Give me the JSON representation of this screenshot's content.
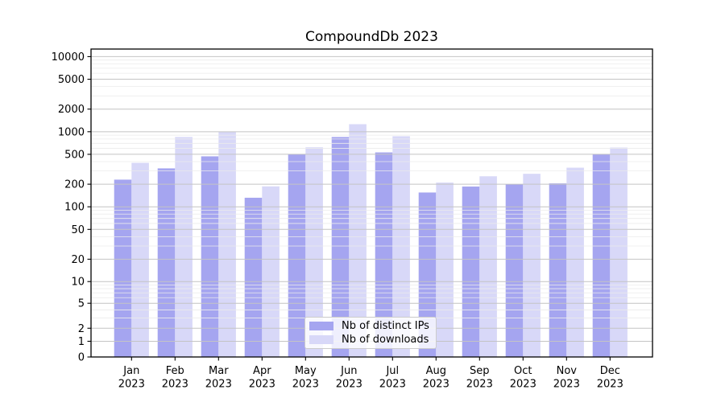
{
  "chart_data": {
    "type": "bar",
    "title": "CompoundDb 2023",
    "categories": [
      "Jan",
      "Feb",
      "Mar",
      "Apr",
      "May",
      "Jun",
      "Jul",
      "Aug",
      "Sep",
      "Oct",
      "Nov",
      "Dec"
    ],
    "x_tick_second_line": "2023",
    "series": [
      {
        "name": "Nb of distinct IPs",
        "color": "#a5a5f0",
        "values": [
          230,
          325,
          470,
          132,
          500,
          850,
          530,
          155,
          186,
          198,
          205,
          500
        ]
      },
      {
        "name": "Nb of downloads",
        "color": "#d8d8f8",
        "values": [
          385,
          850,
          1000,
          187,
          620,
          1260,
          870,
          210,
          255,
          275,
          332,
          615
        ]
      }
    ],
    "y_axis": {
      "scale": "asinh",
      "ticks": [
        0,
        1,
        2,
        5,
        10,
        20,
        50,
        100,
        200,
        500,
        1000,
        2000,
        5000,
        10000
      ],
      "minor_tick_mantissas": [
        3,
        4,
        6,
        7,
        8,
        9
      ],
      "ylim": [
        0,
        12500
      ]
    },
    "grid": {
      "major": true,
      "minor": true,
      "orientation": "horizontal",
      "above_bars": true
    },
    "legend": {
      "position": "lower center",
      "labels": [
        "Nb of distinct IPs",
        "Nb of downloads"
      ]
    },
    "colors": {
      "major_grid": "#c4c4c4",
      "minor_grid": "#ebebeb",
      "spine": "#000000",
      "text": "#000000",
      "background": "#ffffff"
    }
  }
}
